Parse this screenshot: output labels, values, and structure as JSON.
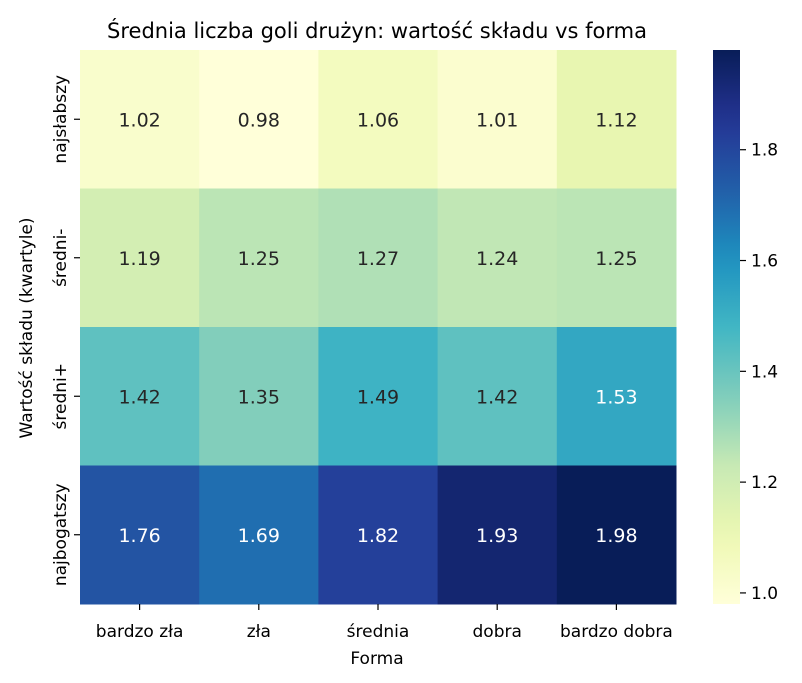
{
  "chart_data": {
    "type": "heatmap",
    "title": "Średnia liczba goli drużyn: wartość składu vs forma",
    "xlabel": "Forma",
    "ylabel": "Wartość składu (kwartyle)",
    "x_categories": [
      "bardzo zła",
      "zła",
      "średnia",
      "dobra",
      "bardzo dobra"
    ],
    "y_categories": [
      "najsłabszy",
      "średni-",
      "średni+",
      "najbogatszy"
    ],
    "values": [
      [
        1.02,
        0.98,
        1.06,
        1.01,
        1.12
      ],
      [
        1.19,
        1.25,
        1.27,
        1.24,
        1.25
      ],
      [
        1.42,
        1.35,
        1.49,
        1.42,
        1.53
      ],
      [
        1.76,
        1.69,
        1.82,
        1.93,
        1.98
      ]
    ],
    "value_labels": [
      [
        "1.02",
        "0.98",
        "1.06",
        "1.01",
        "1.12"
      ],
      [
        "1.19",
        "1.25",
        "1.27",
        "1.24",
        "1.25"
      ],
      [
        "1.42",
        "1.35",
        "1.49",
        "1.42",
        "1.53"
      ],
      [
        "1.76",
        "1.69",
        "1.82",
        "1.93",
        "1.98"
      ]
    ],
    "colorbar": {
      "colormap": "YlGnBu",
      "range": [
        0.98,
        1.98
      ],
      "ticks": [
        1.0,
        1.2,
        1.4,
        1.6,
        1.8
      ],
      "tick_labels": [
        "1.0",
        "1.2",
        "1.4",
        "1.6",
        "1.8"
      ]
    },
    "colors": {
      "text_dark": "#262626",
      "text_light": "#ffffff"
    }
  }
}
